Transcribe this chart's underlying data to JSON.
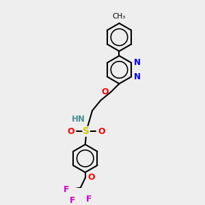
{
  "background_color": "#eeeeee",
  "atom_colors": {
    "C": "#000000",
    "N": "#0000ff",
    "O": "#ff0000",
    "S": "#cccc00",
    "F": "#cc00cc",
    "H": "#4a9090"
  },
  "ring_lw": 1.5,
  "bond_lw": 1.5
}
